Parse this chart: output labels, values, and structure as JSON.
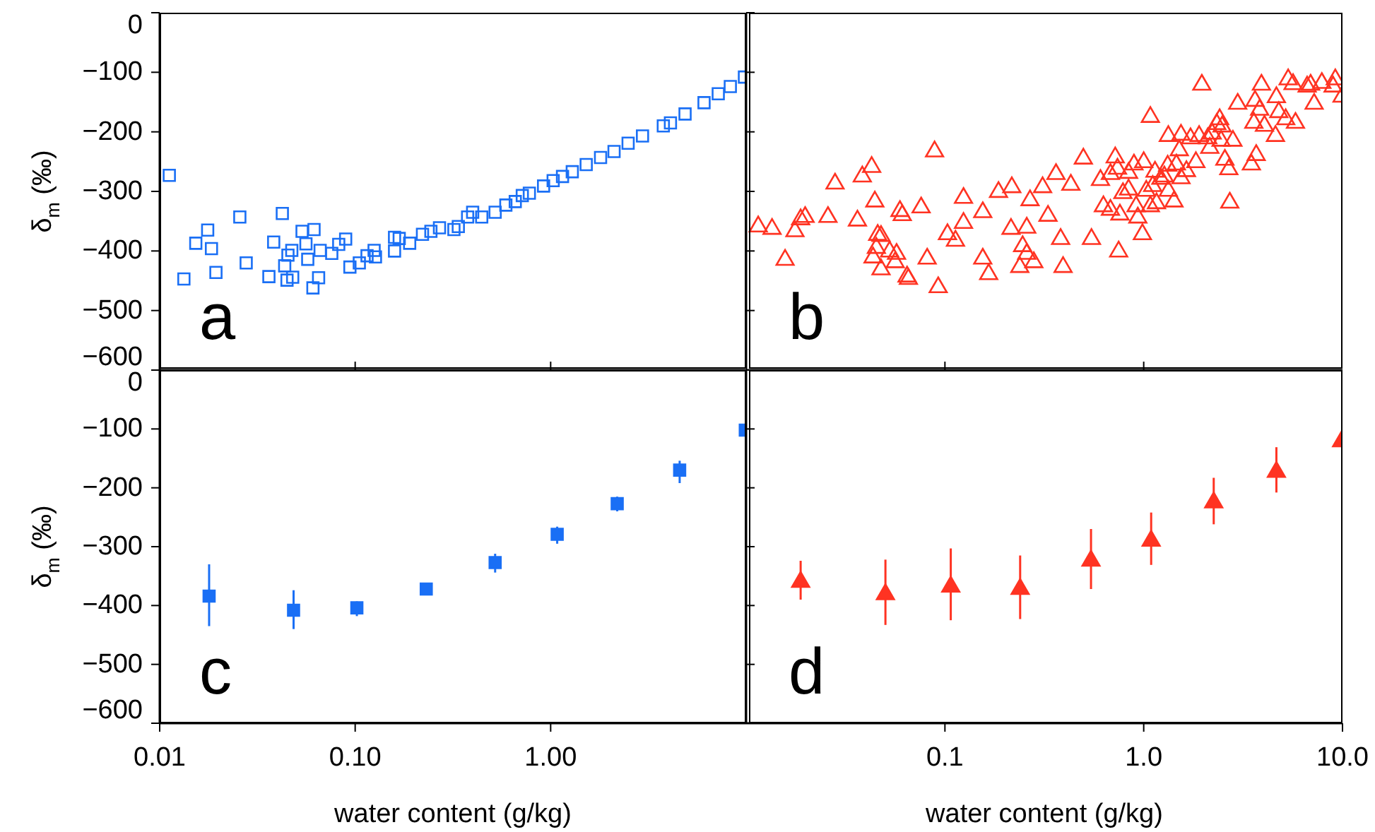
{
  "chart_data": [
    {
      "type": "scatter",
      "log": "x",
      "marker": "square",
      "tick_labels": "y",
      "ylabel": "δ$_{m}$ (‰)",
      "annotations": [
        "a"
      ],
      "xlim": [
        0.01,
        10
      ],
      "xticks": [
        0.01,
        0.1,
        1
      ],
      "ylim": [
        -600,
        0
      ],
      "yticks": [
        0,
        {
          "value": -100,
          "label": "−100"
        },
        {
          "value": -200,
          "label": "−200"
        },
        {
          "value": -300,
          "label": "−300"
        },
        {
          "value": -400,
          "label": "−400"
        },
        {
          "value": -500,
          "label": "−500"
        },
        {
          "value": -600,
          "label": "−600"
        }
      ],
      "series": [
        {
          "color": "#1a6ff5",
          "x": [
            0.0112,
            0.0133,
            0.0153,
            0.0176,
            0.0184,
            0.0194,
            0.0257,
            0.0277,
            0.0362,
            0.0383,
            0.0424,
            0.0436,
            0.0448,
            0.0453,
            0.0474,
            0.0479,
            0.0535,
            0.056,
            0.0572,
            0.0608,
            0.0616,
            0.065,
            0.0662,
            0.0759,
            0.0824,
            0.0894,
            0.094,
            0.105,
            0.115,
            0.125,
            0.127,
            0.159,
            0.159,
            0.168,
            0.19,
            0.221,
            0.244,
            0.27,
            0.32,
            0.337,
            0.376,
            0.399,
            0.444,
            0.52,
            0.59,
            0.659,
            0.716,
            0.778,
            0.92,
            1.03,
            1.15,
            1.29,
            1.52,
            1.8,
            2.11,
            2.49,
            2.95,
            3.77,
            4.1,
            4.87,
            6.09,
            7.2,
            8.3,
            9.8
          ],
          "values": [
            -273,
            -447,
            -387,
            -365,
            -396,
            -436,
            -343,
            -420,
            -443,
            -385,
            -337,
            -425,
            -449,
            -407,
            -399,
            -444,
            -367,
            -388,
            -414,
            -462,
            -364,
            -445,
            -399,
            -404,
            -389,
            -380,
            -427,
            -420,
            -408,
            -399,
            -410,
            -400,
            -377,
            -379,
            -387,
            -372,
            -367,
            -361,
            -364,
            -359,
            -343,
            -335,
            -343,
            -335,
            -323,
            -317,
            -307,
            -303,
            -291,
            -282,
            -275,
            -267,
            -255,
            -243,
            -233,
            -219,
            -207,
            -190,
            -185,
            -170,
            -151,
            -136,
            -124,
            -108
          ]
        }
      ]
    },
    {
      "type": "scatter",
      "log": "x",
      "marker": "triangle",
      "tick_labels": false,
      "annotations": [
        "b"
      ],
      "xlim": [
        0.01,
        10
      ],
      "xticks": [
        0.01,
        0.1,
        1
      ],
      "ylim": [
        -600,
        0
      ],
      "yticks": [
        0,
        -100,
        -200,
        -300,
        -400,
        -500,
        -600
      ],
      "series": [
        {
          "color": "#ff3322",
          "x": [
            0.0115,
            0.0135,
            0.0157,
            0.0176,
            0.0188,
            0.0198,
            0.0258,
            0.028,
            0.0363,
            0.0384,
            0.0428,
            0.0444,
            0.0452,
            0.0435,
            0.0477,
            0.0459,
            0.0477,
            0.0527,
            0.0571,
            0.0562,
            0.0594,
            0.061,
            0.0645,
            0.0655,
            0.0759,
            0.0814,
            0.0887,
            0.0925,
            0.103,
            0.113,
            0.124,
            0.124,
            0.155,
            0.155,
            0.166,
            0.186,
            0.215,
            0.217,
            0.238,
            0.246,
            0.258,
            0.258,
            0.268,
            0.28,
            0.31,
            0.33,
            0.362,
            0.382,
            0.393,
            0.43,
            0.497,
            0.546,
            0.606,
            0.627,
            0.68,
            0.68,
            0.719,
            0.738,
            0.748,
            0.759,
            0.786,
            0.839,
            0.839,
            0.893,
            0.916,
            0.934,
            0.985,
            1.0,
            1.03,
            1.08,
            1.08,
            1.11,
            1.14,
            1.16,
            1.22,
            1.27,
            1.32,
            1.33,
            1.33,
            1.42,
            1.46,
            1.51,
            1.54,
            1.54,
            1.64,
            1.72,
            1.83,
            1.9,
            1.96,
            2.1,
            2.15,
            2.21,
            2.33,
            2.41,
            2.48,
            2.45,
            2.56,
            2.68,
            2.71,
            2.81,
            2.97,
            3.48,
            3.58,
            3.63,
            3.68,
            3.83,
            3.91,
            4.05,
            4.6,
            4.65,
            4.78,
            5.18,
            5.33,
            5.64,
            5.8,
            6.64,
            6.91,
            7.2,
            7.87,
            8.97,
            9.2,
            9.95
          ],
          "values": [
            -359,
            -363,
            -415,
            -367,
            -347,
            -343,
            -343,
            -287,
            -349,
            -275,
            -259,
            -317,
            -395,
            -411,
            -375,
            -373,
            -431,
            -401,
            -405,
            -419,
            -333,
            -340,
            -443,
            -447,
            -327,
            -413,
            -233,
            -461,
            -372,
            -383,
            -311,
            -353,
            -335,
            -413,
            -439,
            -301,
            -363,
            -293,
            -427,
            -392,
            -361,
            -405,
            -315,
            -419,
            -293,
            -341,
            -271,
            -380,
            -427,
            -289,
            -245,
            -380,
            -281,
            -325,
            -331,
            -271,
            -243,
            -262,
            -401,
            -339,
            -303,
            -269,
            -297,
            -255,
            -325,
            -344,
            -372,
            -251,
            -299,
            -325,
            -175,
            -291,
            -267,
            -320,
            -279,
            -275,
            -257,
            -207,
            -299,
            -317,
            -255,
            -231,
            -205,
            -278,
            -266,
            -211,
            -251,
            -207,
            -121,
            -211,
            -227,
            -203,
            -187,
            -179,
            -191,
            -215,
            -247,
            -263,
            -319,
            -215,
            -153,
            -255,
            -185,
            -148,
            -239,
            -163,
            -121,
            -190,
            -207,
            -142,
            -167,
            -179,
            -112,
            -120,
            -185,
            -124,
            -121,
            -153,
            -118,
            -124,
            -112,
            -141
          ]
        }
      ]
    },
    {
      "type": "scatter",
      "log": "x",
      "marker": "square",
      "xlabel": "water content (g/kg)",
      "ylabel": "δ$_{m}$ (‰)",
      "annotations": [
        "c"
      ],
      "xlim": [
        0.01,
        10
      ],
      "xticks": [
        {
          "value": 0.01,
          "label": "0.01"
        },
        {
          "value": 0.1,
          "label": "0.10"
        },
        {
          "value": 1,
          "label": "1.00"
        }
      ],
      "ylim": [
        -600,
        0
      ],
      "yticks": [
        0,
        {
          "value": -100,
          "label": "−100"
        },
        {
          "value": -200,
          "label": "−200"
        },
        {
          "value": -300,
          "label": "−300"
        },
        {
          "value": -400,
          "label": "−400"
        },
        {
          "value": -500,
          "label": "−500"
        },
        {
          "value": -600,
          "label": "−600"
        }
      ],
      "series": [
        {
          "color": "#1a6ff5",
          "x": [
            0.0179,
            0.0484,
            0.102,
            0.231,
            0.52,
            1.08,
            2.19,
            4.57,
            9.9
          ],
          "values": [
            -384,
            -408,
            -404,
            -372,
            -327,
            -279,
            -227,
            -170,
            -102
          ],
          "errors": [
            [
              -435,
              -330
            ],
            [
              -440,
              -374
            ],
            [
              -418,
              -393
            ],
            null,
            [
              -344,
              -312
            ],
            [
              -295,
              -266
            ],
            [
              -240,
              -215
            ],
            [
              -192,
              -154
            ],
            null
          ]
        }
      ]
    },
    {
      "type": "scatter",
      "log": "x",
      "marker": "triangle",
      "tick_labels": "x",
      "xlabel": "water content (g/kg)",
      "annotations": [
        "d"
      ],
      "xlim": [
        0.01,
        10
      ],
      "xticks": [
        {
          "value": 0.1,
          "label": "0.1"
        },
        {
          "value": 1,
          "label": "1.0"
        },
        {
          "value": 10,
          "label": "10.0"
        }
      ],
      "ylim": [
        -600,
        0
      ],
      "yticks": [
        0,
        -100,
        -200,
        -300,
        -400,
        -500,
        -600
      ],
      "series": [
        {
          "color": "#ff3322",
          "x": [
            0.0188,
            0.0502,
            0.107,
            0.239,
            0.543,
            1.09,
            2.25,
            4.65,
            9.9
          ],
          "values": [
            -360,
            -381,
            -368,
            -372,
            -324,
            -290,
            -225,
            -173,
            -121
          ],
          "errors": [
            [
              -390,
              -324
            ],
            [
              -433,
              -322
            ],
            [
              -425,
              -303
            ],
            [
              -423,
              -315
            ],
            [
              -372,
              -270
            ],
            [
              -331,
              -242
            ],
            [
              -262,
              -183
            ],
            [
              -208,
              -131
            ],
            null
          ]
        }
      ]
    }
  ]
}
